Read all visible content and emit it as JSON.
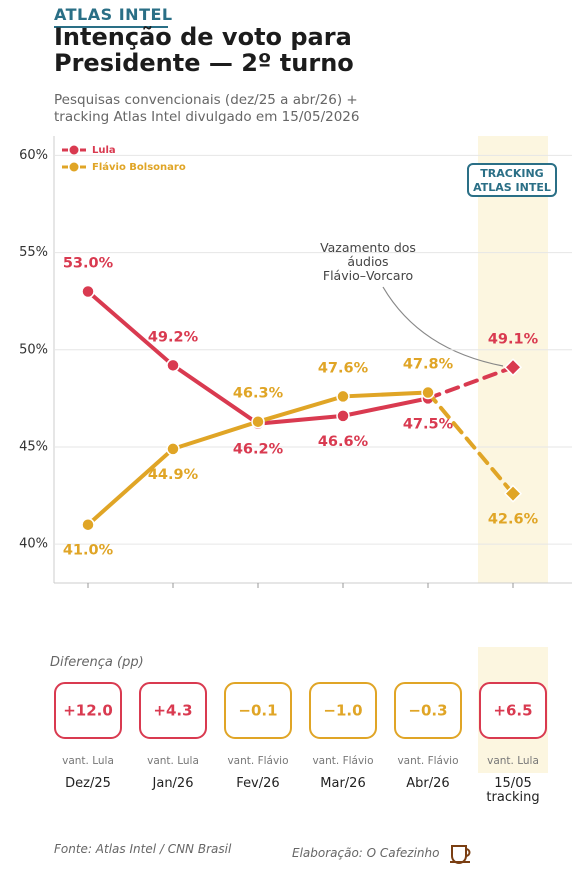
{
  "chart_data": {
    "type": "line",
    "brand": "ATLAS INTEL",
    "title": "Intenção de voto para\nPresidente — 2º turno",
    "subtitle": "Pesquisas convencionais (dez/25 a abr/26) +\ntracking Atlas Intel divulgado em 15/05/2026",
    "categories": [
      "Dez/25",
      "Jan/26",
      "Fev/26",
      "Mar/26",
      "Abr/26",
      "15/05\ntracking"
    ],
    "tracking_index": 5,
    "tracking_label": "TRACKING\nATLAS INTEL",
    "series": [
      {
        "name": "Lula",
        "color": "#d93a50",
        "values": [
          53.0,
          49.2,
          46.2,
          46.6,
          47.5,
          49.1
        ],
        "value_labels": [
          "53.0%",
          "49.2%",
          "46.2%",
          "46.6%",
          "47.5%",
          "49.1%"
        ]
      },
      {
        "name": "Flávio Bolsonaro",
        "color": "#e0a526",
        "values": [
          41.0,
          44.9,
          46.3,
          47.6,
          47.8,
          42.6
        ],
        "value_labels": [
          "41.0%",
          "44.9%",
          "46.3%",
          "47.6%",
          "47.8%",
          "42.6%"
        ]
      }
    ],
    "ylim": [
      38,
      61
    ],
    "yticks": [
      {
        "value": 40,
        "label": "40%"
      },
      {
        "value": 45,
        "label": "45%"
      },
      {
        "value": 50,
        "label": "50%"
      },
      {
        "value": 55,
        "label": "55%"
      },
      {
        "value": 60,
        "label": "60%"
      }
    ],
    "grid": true,
    "legend_position": "upper left",
    "annotation": "Vazamento dos\náudios\nFlávio–Vorcaro",
    "difference": {
      "title": "Diferença (pp)",
      "values": [
        12.0,
        4.3,
        -0.1,
        -1.0,
        -0.3,
        6.5
      ],
      "value_labels": [
        "+12.0",
        "+4.3",
        "−0.1",
        "−1.0",
        "−0.3",
        "+6.5"
      ],
      "notes": [
        "vant. Lula",
        "vant. Lula",
        "vant. Flávio",
        "vant. Flávio",
        "vant. Flávio",
        "vant. Lula"
      ]
    },
    "source": "Fonte: Atlas Intel / CNN Brasil",
    "credit": "Elaboração: O Cafezinho"
  }
}
